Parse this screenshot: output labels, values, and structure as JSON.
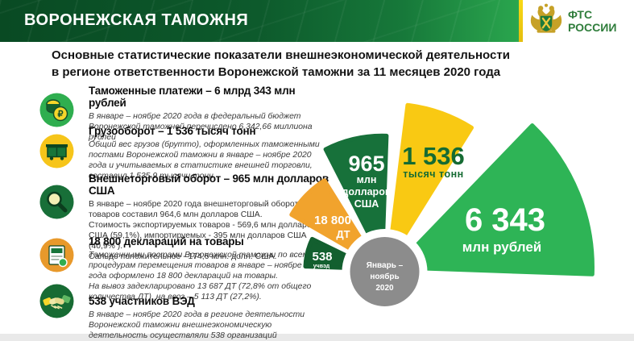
{
  "header": {
    "title": "ВОРОНЕЖСКАЯ ТАМОЖНЯ",
    "logo_line1": "ФТС",
    "logo_line2": "РОССИИ"
  },
  "slide_title": {
    "line1": "Основные статистические показатели внешнеэкономической деятельности",
    "line2": "в регионе ответственности Воронежской таможни за 11 месяцев 2020 года"
  },
  "stats": [
    {
      "heading": "Таможенные платежи – 6 млрд 343 млн  рублей",
      "body": "В январе – ноябре 2020 года в федеральный бюджет Воронежской таможней  перечислено 6 342,66  миллиона рублей"
    },
    {
      "heading": "Грузооборот – 1 536 тысяч тонн",
      "body": "Общий вес грузов (брутто), оформленных таможенными постами Воронежской таможни в январе – ноябре 2020 года и учитываемых в статистике внешней торговли, составил 1 535,9 тысячи тонн"
    },
    {
      "heading": "Внешнеторговый оборот – 965 млн долларов США",
      "body": "В январе – ноябре 2020 года внешнеторговый  оборот товаров составил 964,6 млн долларов США.\nСтоимость экспортируемых  товаров - 569,6 млн долларов США (59,1%), импортируемых  - 395 млн  долларов США  (40,9% ).\nСальдо положительное  - 174,6 млн. долл. США."
    },
    {
      "heading": "18 800 деклараций  на товары",
      "body": "Таможенными  постами Воронежской таможни по всем процедурам перемещения товаров в январе – ноябре 2020 года оформлено 18 800 деклараций  на товары.\nНа вывоз задекларировано 13 687 ДТ (72,8%  от общего количества ДТ), на ввоз – 5 113 ДТ (27,2%)."
    },
    {
      "heading": "538 участников ВЭД",
      "body": "В январе – ноябре 2020 года в регионе деятельности Воронежской таможни внешнеэкономическую  деятельность осуществляли 538 организаций"
    }
  ],
  "chart_data": {
    "type": "pie",
    "style": "exploded-fan",
    "center_label": [
      "Январь –",
      "ноябрь",
      "2020"
    ],
    "center_color": "#8c8c8c",
    "segments": [
      {
        "id": "uchved",
        "label": "538",
        "sublabel": "учвэд",
        "value": 538,
        "color": "#135f2f",
        "geometry": {
          "a1": 154,
          "a2": 178,
          "r": 85,
          "offset": 14
        }
      },
      {
        "id": "dt",
        "label": "18 800",
        "sublabel": "ДТ",
        "value": 18800,
        "color": "#f1a32d",
        "geometry": {
          "a1": 122,
          "a2": 150,
          "r": 122,
          "offset": 14
        }
      },
      {
        "id": "usd",
        "label": "965",
        "sublabel": "млн долларов США",
        "value": 965,
        "color": "#17713a",
        "sublabel_lines": [
          "млн",
          "долларов",
          "США"
        ],
        "geometry": {
          "a1": 88,
          "a2": 117,
          "r": 155,
          "offset": 14
        }
      },
      {
        "id": "tons",
        "label": "1 536",
        "sublabel": "тысяч тонн",
        "value": 1536,
        "color": "#f9c913",
        "geometry": {
          "a1": 58,
          "a2": 83,
          "r": 195,
          "offset": 14
        }
      },
      {
        "id": "rub",
        "label": "6 343",
        "sublabel": "млн рублей",
        "value": 6343,
        "color": "#2eb456",
        "geometry": {
          "a1": -2,
          "a2": 46,
          "r": 245,
          "offset": 14
        }
      }
    ]
  }
}
